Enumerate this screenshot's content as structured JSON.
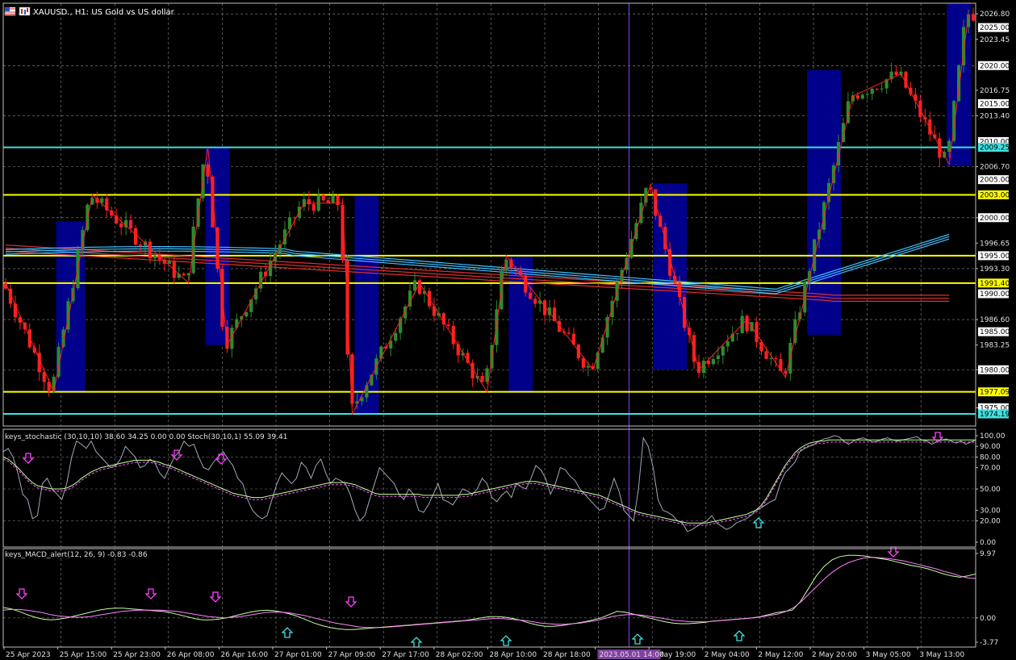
{
  "window": {
    "title": "XAUUSD., H1:  US Gold vs US dollar",
    "flag_icon": "flag-icon",
    "chart_icon": "chart-type-icon"
  },
  "colors": {
    "background": "#000000",
    "grid": "#c8c8c8",
    "bull": "#2e8b2e",
    "bear": "#ff2020",
    "zigzag": "#ff2020",
    "box": "#00008b",
    "yellow_level": "#ffff00",
    "cyan_level": "#40e0e0",
    "ma_red": "#e03030",
    "ma_cyan": "#40c0ff",
    "stoch_main": "#a0a8b8",
    "stoch_signal": "#c8ffa0",
    "stoch_dash": "#ff60ff",
    "macd_main": "#c8ffa0",
    "macd_signal": "#ff80ff",
    "arrow_down": "#ff40ff",
    "arrow_up": "#40e0e0",
    "crosshair": "#8040ff"
  },
  "price_axis": {
    "ticks": [
      "2026.80",
      "2023.45",
      "2016.75",
      "2013.40",
      "2006.70",
      "2000.00",
      "1996.65",
      "1993.30",
      "1986.60",
      "1983.25",
      "1980.00",
      "1975.00"
    ],
    "tags": [
      {
        "text": "2025.00",
        "price": 2025.0,
        "style": "white"
      },
      {
        "text": "2020.00",
        "price": 2020.0,
        "style": "white"
      },
      {
        "text": "2015.00",
        "price": 2015.0,
        "style": "white"
      },
      {
        "text": "2010.00",
        "price": 2010.0,
        "style": "white"
      },
      {
        "text": "2009.25",
        "price": 2009.25,
        "style": "cyan"
      },
      {
        "text": "2005.00",
        "price": 2005.0,
        "style": "white"
      },
      {
        "text": "2003.00",
        "price": 2003.0,
        "style": "yellow"
      },
      {
        "text": "2000.00",
        "price": 2000.0,
        "style": "white"
      },
      {
        "text": "1995.00",
        "price": 1995.0,
        "style": "white"
      },
      {
        "text": "1991.40",
        "price": 1991.4,
        "style": "yellow"
      },
      {
        "text": "1990.00",
        "price": 1990.0,
        "style": "white"
      },
      {
        "text": "1985.00",
        "price": 1985.0,
        "style": "white"
      },
      {
        "text": "1980.00",
        "price": 1980.0,
        "style": "white"
      },
      {
        "text": "1977.09",
        "price": 1977.09,
        "style": "yellow"
      },
      {
        "text": "1975.00",
        "price": 1975.0,
        "style": "white"
      },
      {
        "text": "1974.19",
        "price": 1974.19,
        "style": "cyan"
      }
    ]
  },
  "stoch_panel": {
    "label": "keys_stochastic (30,10,10) 38.60 34.25 0.00 0.00 Stoch(30,10,1) 55.09 39.41",
    "ticks": [
      "100.00",
      "90.00",
      "80.00",
      "70.00",
      "50.00",
      "30.00",
      "20.00",
      "0.00"
    ]
  },
  "macd_panel": {
    "label": "keys_MACD_alert(12, 26, 9) -0.83 -0.86",
    "ticks": [
      "9.97",
      "0.00",
      "-3.77"
    ]
  },
  "time_axis": {
    "labels": [
      "25 Apr 2023",
      "25 Apr 15:00",
      "25 Apr 23:00",
      "26 Apr 08:00",
      "26 Apr 16:00",
      "27 Apr 01:00",
      "27 Apr 09:00",
      "27 Apr 17:00",
      "28 Apr 02:00",
      "28 Apr 10:00",
      "28 Apr 18:00",
      "1 May 03:00",
      "1 May 19:00",
      "2 May 04:00",
      "2 May 12:00",
      "2 May 20:00",
      "3 May 05:00",
      "3 May 13:00"
    ],
    "crosshair_label": "2023.05.01 14:00"
  },
  "chart_data": {
    "type": "candlestick",
    "symbol": "XAUUSD.",
    "timeframe": "H1",
    "ylim": [
      1972.6,
      2028.2
    ],
    "horizontal_levels": [
      {
        "price": 2009.25,
        "color": "cyan"
      },
      {
        "price": 2003.0,
        "color": "yellow"
      },
      {
        "price": 1995.0,
        "color": "yellow"
      },
      {
        "price": 1991.4,
        "color": "yellow"
      },
      {
        "price": 1977.09,
        "color": "yellow"
      },
      {
        "price": 1974.19,
        "color": "cyan"
      }
    ],
    "zigzag": [
      [
        0,
        1991.4
      ],
      [
        10,
        1977.09
      ],
      [
        18,
        2003.0
      ],
      [
        38,
        1991.4
      ],
      [
        42,
        2009.25
      ],
      [
        46,
        1983.25
      ],
      [
        62,
        2001.9
      ],
      [
        70,
        2001.9
      ],
      [
        72,
        1974.19
      ],
      [
        86,
        1991.4
      ],
      [
        100,
        1977.09
      ],
      [
        104,
        1995.0
      ],
      [
        122,
        1980.0
      ],
      [
        134,
        2004.4
      ],
      [
        144,
        1980.0
      ],
      [
        154,
        1986.6
      ],
      [
        162,
        1979.0
      ],
      [
        176,
        2016.0
      ],
      [
        186,
        2018.9
      ],
      [
        196,
        2007.0
      ],
      [
        200,
        2026.8
      ]
    ],
    "boxes": [
      {
        "from": 11,
        "to": 17,
        "high": 1999.5,
        "low": 1977.09
      },
      {
        "from": 42,
        "to": 47,
        "high": 2009.25,
        "low": 1983.25
      },
      {
        "from": 73,
        "to": 78,
        "high": 2003.0,
        "low": 1974.19
      },
      {
        "from": 105,
        "to": 110,
        "high": 1995.0,
        "low": 1977.09
      },
      {
        "from": 135,
        "to": 142,
        "high": 2004.5,
        "low": 1980.0
      },
      {
        "from": 167,
        "to": 174,
        "high": 2019.4,
        "low": 1984.6
      },
      {
        "from": 196,
        "to": 201,
        "high": 2028.2,
        "low": 2006.8
      }
    ],
    "stoch_main": [
      85,
      88,
      80,
      65,
      45,
      40,
      22,
      25,
      55,
      60,
      50,
      45,
      40,
      55,
      80,
      95,
      92,
      88,
      95,
      85,
      80,
      75,
      70,
      72,
      78,
      90,
      85,
      80,
      70,
      72,
      78,
      75,
      65,
      60,
      70,
      80,
      85,
      95,
      90,
      92,
      80,
      70,
      68,
      75,
      80,
      85,
      78,
      72,
      60,
      55,
      40,
      30,
      25,
      22,
      25,
      40,
      55,
      65,
      60,
      55,
      60,
      75,
      70,
      60,
      72,
      78,
      65,
      55,
      60,
      58,
      55,
      45,
      30,
      20,
      25,
      40,
      55,
      70,
      65,
      60,
      55,
      45,
      40,
      50,
      45,
      30,
      28,
      35,
      45,
      55,
      40,
      38,
      35,
      42,
      50,
      48,
      45,
      50,
      60,
      55,
      42,
      38,
      44,
      48,
      42,
      55,
      52,
      50,
      60,
      72,
      68,
      60,
      45,
      55,
      70,
      68,
      62,
      58,
      50,
      45,
      40,
      35,
      30,
      32,
      45,
      60,
      48,
      30,
      25,
      20,
      50,
      98,
      90,
      70,
      40,
      30,
      28,
      25,
      20,
      18,
      10,
      12,
      15,
      18,
      20,
      25,
      18,
      15,
      12,
      14,
      18,
      20,
      22,
      25,
      30,
      32,
      35,
      38,
      40,
      55,
      65,
      70,
      75,
      85,
      88,
      90,
      92,
      95,
      97,
      98,
      100,
      99,
      95,
      92,
      95,
      97,
      98,
      96,
      94,
      95,
      97,
      98,
      96,
      95,
      96,
      97,
      98,
      99,
      96,
      95,
      92,
      94,
      96,
      97,
      95,
      93,
      95,
      92,
      94,
      96
    ],
    "stoch_signal": [
      80,
      78,
      74,
      70,
      65,
      60,
      56,
      53,
      52,
      51,
      50,
      50,
      50,
      51,
      53,
      56,
      60,
      63,
      66,
      68,
      70,
      71,
      72,
      73,
      74,
      75,
      76,
      77,
      77,
      77,
      77,
      76,
      75,
      73,
      72,
      70,
      68,
      66,
      64,
      62,
      60,
      58,
      56,
      54,
      52,
      50,
      48,
      46,
      45,
      44,
      43,
      42,
      42,
      42,
      43,
      44,
      45,
      46,
      47,
      48,
      49,
      50,
      51,
      52,
      53,
      54,
      55,
      56,
      56,
      56,
      56,
      55,
      54,
      52,
      50,
      48,
      46,
      45,
      45,
      45,
      45,
      45,
      45,
      45,
      45,
      45,
      44,
      44,
      44,
      44,
      44,
      44,
      44,
      44,
      45,
      45,
      46,
      47,
      48,
      49,
      50,
      51,
      52,
      53,
      54,
      55,
      56,
      57,
      57,
      57,
      56,
      55,
      54,
      53,
      52,
      51,
      50,
      49,
      48,
      47,
      46,
      45,
      44,
      42,
      40,
      38,
      36,
      34,
      32,
      30,
      28,
      27,
      26,
      25,
      24,
      23,
      22,
      21,
      20,
      19,
      18,
      18,
      18,
      18,
      18,
      19,
      20,
      21,
      22,
      23,
      24,
      25,
      26,
      28,
      30,
      34,
      40,
      48,
      56,
      64,
      72,
      78,
      84,
      88,
      91,
      93,
      94,
      95,
      95,
      96,
      96,
      96,
      96,
      96,
      96,
      96,
      96,
      96,
      96,
      96,
      96,
      96,
      96,
      96,
      96,
      96,
      96,
      96,
      96,
      96,
      96,
      96,
      96,
      96,
      96,
      96,
      96,
      96,
      96,
      96
    ],
    "macd_main": [
      1.6,
      1.4,
      1.0,
      0.5,
      0.1,
      -0.2,
      -0.3,
      -0.2,
      0.0,
      0.3,
      0.6,
      0.9,
      1.2,
      1.4,
      1.5,
      1.5,
      1.4,
      1.3,
      1.2,
      1.1,
      1.0,
      0.8,
      0.5,
      0.2,
      -0.1,
      -0.3,
      -0.3,
      -0.2,
      0.0,
      0.3,
      0.6,
      0.9,
      1.1,
      1.2,
      1.1,
      0.9,
      0.6,
      0.2,
      -0.3,
      -0.8,
      -1.2,
      -1.5,
      -1.7,
      -1.8,
      -1.8,
      -1.7,
      -1.6,
      -1.5,
      -1.4,
      -1.3,
      -1.2,
      -1.1,
      -1.0,
      -0.9,
      -0.8,
      -0.7,
      -0.6,
      -0.5,
      -0.4,
      -0.2,
      0.0,
      0.2,
      0.2,
      0.1,
      -0.1,
      -0.4,
      -0.8,
      -1.1,
      -1.3,
      -1.3,
      -1.2,
      -1.0,
      -0.8,
      -0.6,
      -0.3,
      0.0,
      0.5,
      1.0,
      0.9,
      0.6,
      0.3,
      0.0,
      -0.3,
      -0.6,
      -0.8,
      -0.9,
      -0.9,
      -0.8,
      -0.7,
      -0.5,
      -0.4,
      -0.3,
      -0.2,
      -0.1,
      0.0,
      0.2,
      0.5,
      0.8,
      1.0,
      1.2,
      2.5,
      4.5,
      6.5,
      8.0,
      9.0,
      9.5,
      9.7,
      9.7,
      9.6,
      9.4,
      9.2,
      9.0,
      8.7,
      8.4,
      8.1,
      7.9,
      7.6,
      7.2,
      6.8,
      6.5,
      6.3,
      6.5,
      6.8
    ],
    "macd_signal": [
      1.2,
      1.3,
      1.3,
      1.2,
      1.0,
      0.8,
      0.5,
      0.3,
      0.2,
      0.1,
      0.1,
      0.2,
      0.4,
      0.6,
      0.8,
      1.0,
      1.1,
      1.2,
      1.2,
      1.2,
      1.2,
      1.1,
      1.0,
      0.8,
      0.6,
      0.4,
      0.2,
      0.1,
      0.0,
      0.1,
      0.2,
      0.4,
      0.6,
      0.8,
      0.9,
      0.9,
      0.8,
      0.6,
      0.4,
      0.1,
      -0.2,
      -0.5,
      -0.8,
      -1.0,
      -1.2,
      -1.4,
      -1.5,
      -1.5,
      -1.5,
      -1.4,
      -1.3,
      -1.2,
      -1.1,
      -1.0,
      -0.9,
      -0.8,
      -0.7,
      -0.6,
      -0.5,
      -0.4,
      -0.3,
      -0.2,
      -0.1,
      -0.1,
      -0.2,
      -0.3,
      -0.4,
      -0.6,
      -0.8,
      -0.9,
      -1.0,
      -1.0,
      -0.9,
      -0.8,
      -0.6,
      -0.4,
      -0.1,
      0.2,
      0.4,
      0.5,
      0.5,
      0.4,
      0.2,
      0.0,
      -0.2,
      -0.4,
      -0.5,
      -0.6,
      -0.6,
      -0.6,
      -0.5,
      -0.4,
      -0.3,
      -0.2,
      -0.1,
      0.0,
      0.2,
      0.4,
      0.6,
      1.0,
      1.6,
      2.6,
      3.8,
      5.0,
      6.2,
      7.2,
      8.0,
      8.6,
      9.0,
      9.3,
      9.4,
      9.3,
      9.2,
      9.0,
      8.8,
      8.5,
      8.2,
      7.9,
      7.6,
      7.2,
      6.9,
      6.5,
      6.2,
      6.1
    ]
  }
}
